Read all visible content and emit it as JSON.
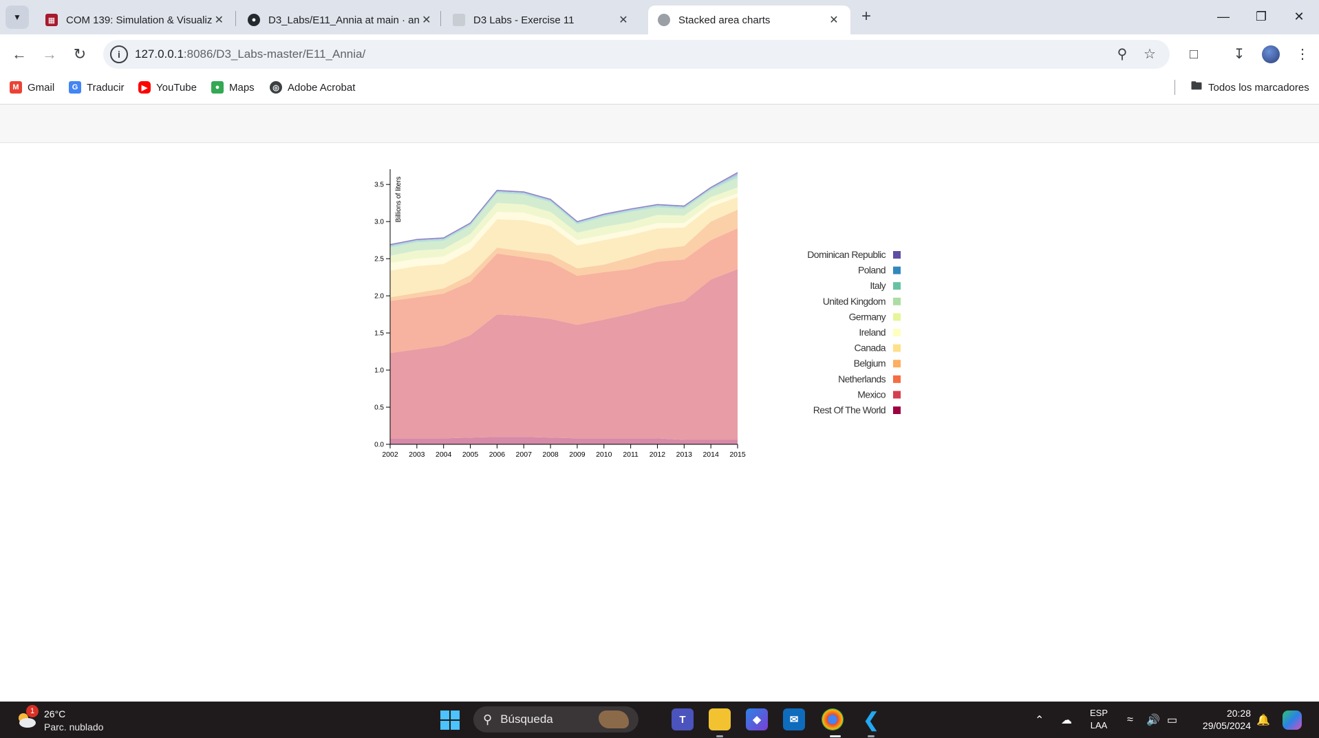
{
  "browser": {
    "tabs": [
      {
        "title": "COM 139: Simulation & Visualiz",
        "active": false,
        "favicon": "university-favicon"
      },
      {
        "title": "D3_Labs/E11_Annia at main · an",
        "active": false,
        "favicon": "github-favicon"
      },
      {
        "title": "D3 Labs - Exercise 11",
        "active": false,
        "favicon": "page-favicon"
      },
      {
        "title": "Stacked area charts",
        "active": true,
        "favicon": "globe-favicon"
      }
    ],
    "url_host": "127.0.0.1",
    "url_rest": ":8086/D3_Labs-master/E11_Annia/",
    "bookmarks": [
      {
        "label": "Gmail",
        "icon": "gmail-icon",
        "color": "#ea4335"
      },
      {
        "label": "Traducir",
        "icon": "translate-icon",
        "color": "#4285f4"
      },
      {
        "label": "YouTube",
        "icon": "youtube-icon",
        "color": "#ff0000"
      },
      {
        "label": "Maps",
        "icon": "maps-icon",
        "color": "#34a853"
      },
      {
        "label": "Adobe Acrobat",
        "icon": "globe-icon",
        "color": "#3c4043"
      }
    ],
    "all_bookmarks_label": "Todos los marcadores"
  },
  "chart_data": {
    "type": "area",
    "stacked": true,
    "ylabel": "Billions of liters",
    "xlabel": "",
    "x": [
      2002,
      2003,
      2004,
      2005,
      2006,
      2007,
      2008,
      2009,
      2010,
      2011,
      2012,
      2013,
      2014,
      2015
    ],
    "ylim": [
      0,
      3.65
    ],
    "yticks": [
      "0.0",
      "0.5",
      "1.0",
      "1.5",
      "2.0",
      "2.5",
      "3.0",
      "3.5"
    ],
    "legend_position": "right",
    "series": [
      {
        "name": "Rest Of The World",
        "color": "#9e0142",
        "fill": "#d58aa8",
        "values": [
          0.08,
          0.08,
          0.08,
          0.09,
          0.1,
          0.1,
          0.09,
          0.08,
          0.08,
          0.08,
          0.08,
          0.06,
          0.06,
          0.06
        ]
      },
      {
        "name": "Mexico",
        "color": "#d53e4f",
        "fill": "#e89ca5",
        "values": [
          1.15,
          1.2,
          1.25,
          1.38,
          1.65,
          1.63,
          1.6,
          1.53,
          1.6,
          1.68,
          1.78,
          1.87,
          2.16,
          2.3
        ]
      },
      {
        "name": "Netherlands",
        "color": "#f46d43",
        "fill": "#f7b39f",
        "values": [
          0.7,
          0.7,
          0.7,
          0.72,
          0.82,
          0.79,
          0.77,
          0.66,
          0.64,
          0.6,
          0.6,
          0.56,
          0.53,
          0.55
        ]
      },
      {
        "name": "Belgium",
        "color": "#fdae61",
        "fill": "#fbcfa8",
        "values": [
          0.05,
          0.06,
          0.07,
          0.09,
          0.08,
          0.08,
          0.1,
          0.1,
          0.1,
          0.16,
          0.17,
          0.18,
          0.25,
          0.25
        ]
      },
      {
        "name": "Canada",
        "color": "#fee08b",
        "fill": "#fdecc0",
        "values": [
          0.36,
          0.36,
          0.33,
          0.34,
          0.38,
          0.42,
          0.38,
          0.31,
          0.33,
          0.3,
          0.28,
          0.25,
          0.2,
          0.17
        ]
      },
      {
        "name": "Ireland",
        "color": "#ffffbf",
        "fill": "#fffbe0",
        "values": [
          0.1,
          0.1,
          0.1,
          0.1,
          0.1,
          0.1,
          0.08,
          0.07,
          0.07,
          0.07,
          0.07,
          0.06,
          0.05,
          0.05
        ]
      },
      {
        "name": "Germany",
        "color": "#e6f598",
        "fill": "#f0f7cf",
        "values": [
          0.1,
          0.11,
          0.1,
          0.11,
          0.12,
          0.11,
          0.11,
          0.1,
          0.11,
          0.1,
          0.11,
          0.1,
          0.08,
          0.08
        ]
      },
      {
        "name": "United Kingdom",
        "color": "#abdda4",
        "fill": "#d3ecd0",
        "values": [
          0.11,
          0.11,
          0.11,
          0.11,
          0.13,
          0.13,
          0.13,
          0.11,
          0.13,
          0.14,
          0.1,
          0.09,
          0.09,
          0.13
        ]
      },
      {
        "name": "Italy",
        "color": "#66c2a5",
        "fill": "#b9e3d5",
        "values": [
          0.02,
          0.02,
          0.02,
          0.02,
          0.02,
          0.02,
          0.02,
          0.02,
          0.02,
          0.02,
          0.02,
          0.02,
          0.02,
          0.03
        ]
      },
      {
        "name": "Poland",
        "color": "#3288bd",
        "fill": "#a7cbe4",
        "values": [
          0.01,
          0.01,
          0.01,
          0.01,
          0.01,
          0.01,
          0.01,
          0.01,
          0.01,
          0.01,
          0.01,
          0.01,
          0.01,
          0.02
        ]
      },
      {
        "name": "Dominican Republic",
        "color": "#5e4fa2",
        "fill": "#b8b0d8",
        "values": [
          0.01,
          0.01,
          0.01,
          0.01,
          0.01,
          0.01,
          0.01,
          0.01,
          0.01,
          0.01,
          0.01,
          0.01,
          0.01,
          0.02
        ]
      }
    ]
  },
  "taskbar": {
    "weather_temp": "26°C",
    "weather_desc": "Parc. nublado",
    "weather_badge": "1",
    "search_placeholder": "Búsqueda",
    "lang_line1": "ESP",
    "lang_line2": "LAA",
    "time": "20:28",
    "date": "29/05/2024"
  }
}
